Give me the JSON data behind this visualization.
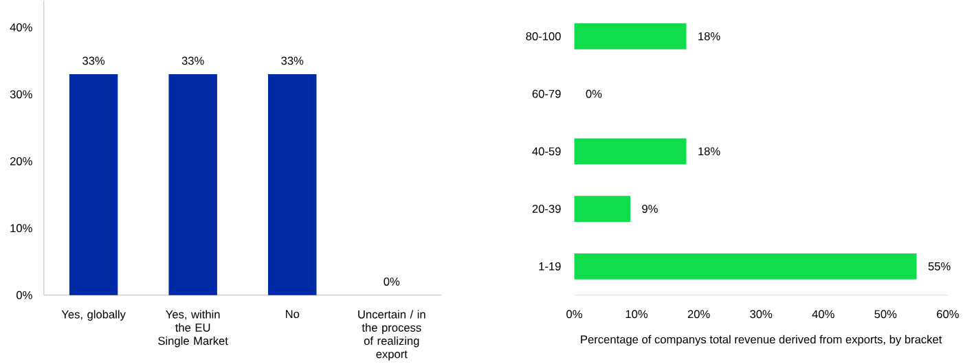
{
  "chart_data": [
    {
      "type": "bar",
      "categories": [
        "Yes, globally",
        "Yes, within the EU Single Market",
        "No",
        "Uncertain / in the process of realizing export"
      ],
      "values": [
        33,
        33,
        33,
        0
      ],
      "color": "#0029a5",
      "value_labels": [
        "33%",
        "33%",
        "33%",
        "0%"
      ],
      "ylim": [
        0,
        44
      ],
      "yticks": [
        {
          "value": 0,
          "label": "0%"
        },
        {
          "value": 10,
          "label": "10%"
        },
        {
          "value": 20,
          "label": "20%"
        },
        {
          "value": 30,
          "label": "30%"
        },
        {
          "value": 40,
          "label": "40%"
        }
      ]
    },
    {
      "type": "bar",
      "orientation": "horizontal",
      "categories": [
        "80-100",
        "60-79",
        "40-59",
        "20-39",
        "1-19"
      ],
      "values": [
        18,
        0,
        18,
        9,
        55
      ],
      "color": "#10dd4b",
      "value_labels": [
        "18%",
        "0%",
        "18%",
        "9%",
        "55%"
      ],
      "xlim": [
        0,
        60
      ],
      "xticks": [
        {
          "value": 0,
          "label": "0%"
        },
        {
          "value": 10,
          "label": "10%"
        },
        {
          "value": 20,
          "label": "20%"
        },
        {
          "value": 30,
          "label": "30%"
        },
        {
          "value": 40,
          "label": "40%"
        },
        {
          "value": 50,
          "label": "50%"
        },
        {
          "value": 60,
          "label": "60%"
        }
      ],
      "xlabel": "Percentage of companys total revenue derived from exports, by bracket"
    }
  ]
}
